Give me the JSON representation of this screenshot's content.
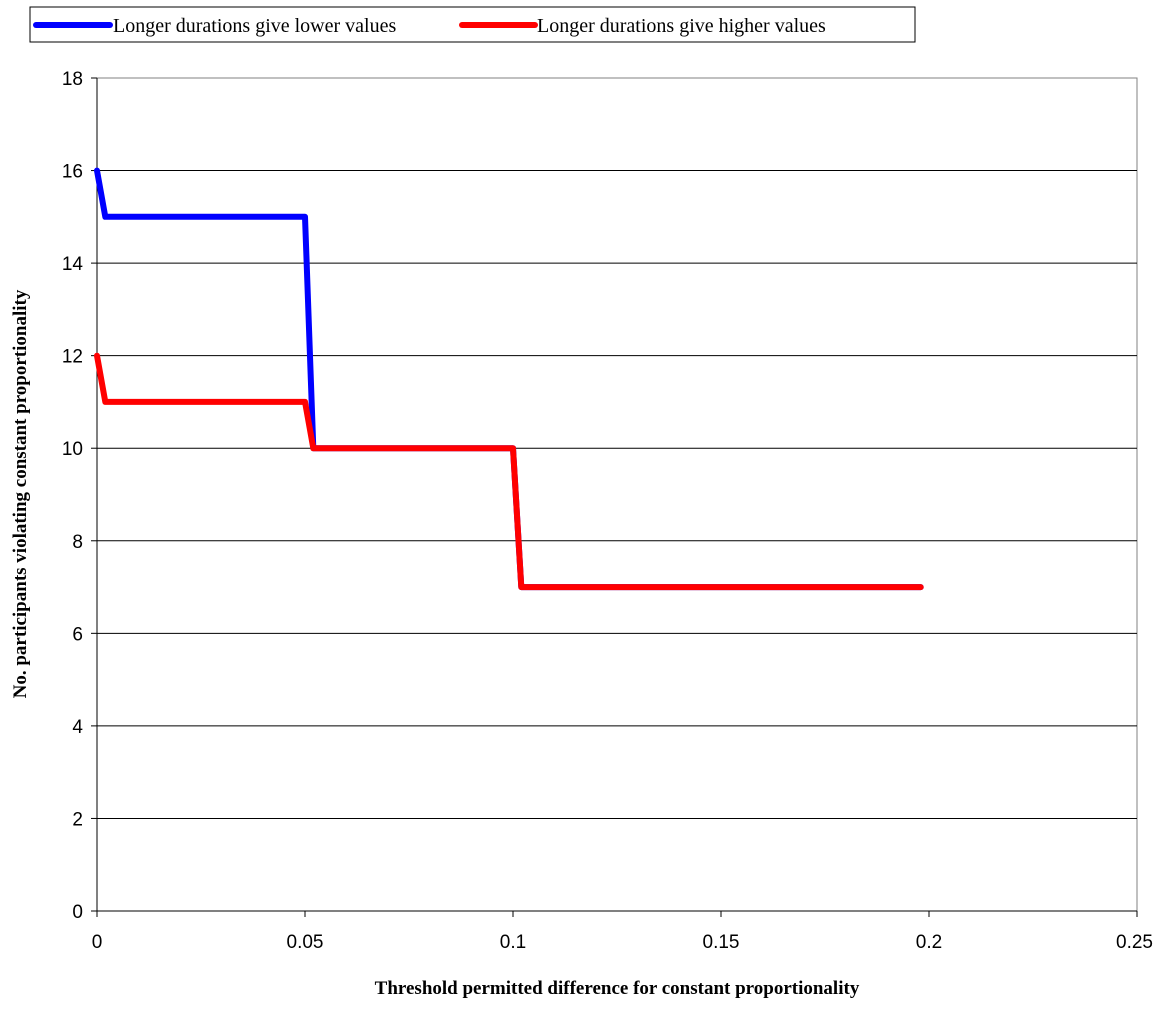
{
  "chart_data": {
    "type": "line",
    "title": "",
    "xlabel": "Threshold permitted difference for constant proportionality",
    "ylabel": "No.  participants violating constant proportionality",
    "xlim": [
      0,
      0.25
    ],
    "ylim": [
      0,
      18
    ],
    "x_ticks": [
      "0",
      "0.05",
      "0.1",
      "0.15",
      "0.2",
      "0.25"
    ],
    "x_tick_values": [
      0,
      0.05,
      0.1,
      0.15,
      0.2,
      0.25
    ],
    "y_ticks": [
      "0",
      "2",
      "4",
      "6",
      "8",
      "10",
      "12",
      "14",
      "16",
      "18"
    ],
    "y_tick_values": [
      0,
      2,
      4,
      6,
      8,
      10,
      12,
      14,
      16,
      18
    ],
    "grid": "horizontal major gridlines",
    "legend_position": "top-left, above plot",
    "series": [
      {
        "name": "Longer durations give lower values",
        "color": "#0000ff",
        "points": [
          [
            0,
            16
          ],
          [
            0.002,
            15
          ],
          [
            0.05,
            15
          ],
          [
            0.052,
            10
          ],
          [
            0.1,
            10
          ],
          [
            0.102,
            7
          ],
          [
            0.198,
            7
          ]
        ]
      },
      {
        "name": "Longer durations give higher values",
        "color": "#ff0000",
        "points": [
          [
            0,
            12
          ],
          [
            0.002,
            11
          ],
          [
            0.05,
            11
          ],
          [
            0.052,
            10
          ],
          [
            0.1,
            10
          ],
          [
            0.102,
            7
          ],
          [
            0.198,
            7
          ]
        ]
      }
    ]
  }
}
